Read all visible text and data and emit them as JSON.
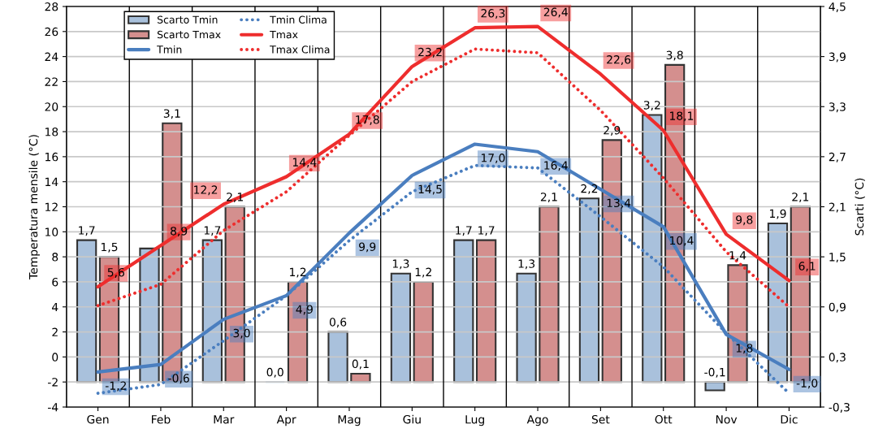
{
  "chart_data": {
    "type": "bar",
    "ylabel": "Temperatura mensile (°C)",
    "y2label": "Scarti (°C)",
    "categories": [
      "Gen",
      "Feb",
      "Mar",
      "Apr",
      "Mag",
      "Giu",
      "Lug",
      "Ago",
      "Set",
      "Ott",
      "Nov",
      "Dic"
    ],
    "ylim": [
      -4,
      28
    ],
    "yticks": [
      -4,
      -2,
      0,
      2,
      4,
      6,
      8,
      10,
      12,
      14,
      16,
      18,
      20,
      22,
      24,
      26,
      28
    ],
    "y2lim": [
      -0.3,
      4.5
    ],
    "y2ticks": [
      {
        "value": -0.3,
        "label": "-0,3"
      },
      {
        "value": 0.3,
        "label": "0,3"
      },
      {
        "value": 0.9,
        "label": "0,9"
      },
      {
        "value": 1.5,
        "label": "1,5"
      },
      {
        "value": 2.1,
        "label": "2,1"
      },
      {
        "value": 2.7,
        "label": "2,7"
      },
      {
        "value": 3.3,
        "label": "3,3"
      },
      {
        "value": 3.9,
        "label": "3,9"
      },
      {
        "value": 4.5,
        "label": "4,5"
      }
    ],
    "grid": "y",
    "legend": "top left",
    "series": [
      {
        "name": "Scarto Tmin",
        "axis": "y2",
        "color": "#a9c1dc",
        "values": [
          1.7,
          1.6,
          1.7,
          0.0,
          0.6,
          1.3,
          1.7,
          1.3,
          2.2,
          3.2,
          -0.1,
          1.9
        ],
        "value_labels": [
          "1,7",
          null,
          "1,7",
          "0,0",
          "0,6",
          "1,3",
          "1,7",
          "1,3",
          "2,2",
          "3,2",
          "-0,1",
          "1,9"
        ]
      },
      {
        "name": "Scarto Tmax",
        "axis": "y2",
        "color": "#d48f8e",
        "values": [
          1.5,
          3.1,
          2.1,
          1.2,
          0.1,
          1.2,
          1.7,
          2.1,
          2.9,
          3.8,
          1.4,
          2.1
        ],
        "value_labels": [
          "1,5",
          "3,1",
          "2,1",
          "1,2",
          "0,1",
          "1,2",
          "1,7",
          "2,1",
          "2,9",
          "3,8",
          "1,4",
          "2,1"
        ]
      },
      {
        "name": "Tmin",
        "type": "line",
        "color": "#4a7ebf",
        "line_style": "solid",
        "values": [
          -1.2,
          -0.6,
          3.0,
          4.9,
          9.9,
          14.5,
          17.0,
          16.4,
          13.4,
          10.4,
          1.8,
          -1.0
        ],
        "value_labels": [
          "-1,2",
          "-0,6",
          "3,0",
          "4,9",
          "9,9",
          "14,5",
          "17,0",
          "16,4",
          "13,4",
          "10,4",
          "1,8",
          "-1,0"
        ]
      },
      {
        "name": "Tmin Clima",
        "type": "line",
        "color": "#4a7ebf",
        "line_style": "dotted",
        "values": [
          -2.9,
          -2.2,
          1.3,
          4.9,
          9.3,
          13.2,
          15.3,
          15.1,
          11.2,
          7.2,
          1.9,
          -2.9
        ]
      },
      {
        "name": "Tmax",
        "type": "line",
        "color": "#ee2d2d",
        "line_style": "solid",
        "values": [
          5.6,
          8.9,
          12.2,
          14.4,
          17.8,
          23.2,
          26.3,
          26.4,
          22.6,
          18.1,
          9.8,
          6.1
        ],
        "value_labels": [
          "5,6",
          "8,9",
          "12,2",
          "14,4",
          "17,8",
          "23,2",
          "26,3",
          "26,4",
          "22,6",
          "18,1",
          "9,8",
          "6,1"
        ]
      },
      {
        "name": "Tmax Clima",
        "type": "line",
        "color": "#ee2d2d",
        "line_style": "dotted",
        "values": [
          4.1,
          5.8,
          10.1,
          13.2,
          17.7,
          22.0,
          24.6,
          24.3,
          19.7,
          14.3,
          8.4,
          4.0
        ]
      }
    ]
  }
}
